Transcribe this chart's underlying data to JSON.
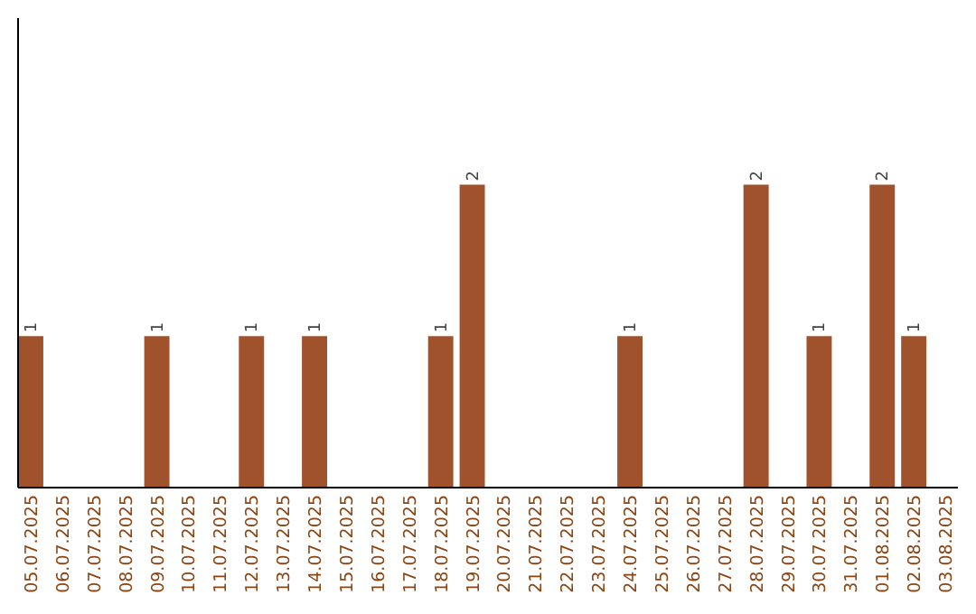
{
  "chart_data": {
    "type": "bar",
    "categories": [
      "05.07.2025",
      "06.07.2025",
      "07.07.2025",
      "08.07.2025",
      "09.07.2025",
      "10.07.2025",
      "11.07.2025",
      "12.07.2025",
      "13.07.2025",
      "14.07.2025",
      "15.07.2025",
      "16.07.2025",
      "17.07.2025",
      "18.07.2025",
      "19.07.2025",
      "20.07.2025",
      "21.07.2025",
      "22.07.2025",
      "23.07.2025",
      "24.07.2025",
      "25.07.2025",
      "26.07.2025",
      "27.07.2025",
      "28.07.2025",
      "29.07.2025",
      "30.07.2025",
      "31.07.2025",
      "01.08.2025",
      "02.08.2025",
      "03.08.2025"
    ],
    "values": [
      1,
      0,
      0,
      0,
      1,
      0,
      0,
      1,
      0,
      1,
      0,
      0,
      0,
      1,
      2,
      0,
      0,
      0,
      0,
      1,
      0,
      0,
      0,
      2,
      0,
      1,
      0,
      2,
      1,
      0
    ],
    "value_labels": [
      "1",
      null,
      null,
      null,
      "1",
      null,
      null,
      "1",
      null,
      "1",
      null,
      null,
      null,
      "1",
      "2",
      null,
      null,
      null,
      null,
      "1",
      null,
      null,
      null,
      "2",
      null,
      "1",
      null,
      "2",
      "1",
      null
    ],
    "color": "#a0522d",
    "ylim": [
      0,
      3.1
    ],
    "tick_labels": "x"
  }
}
